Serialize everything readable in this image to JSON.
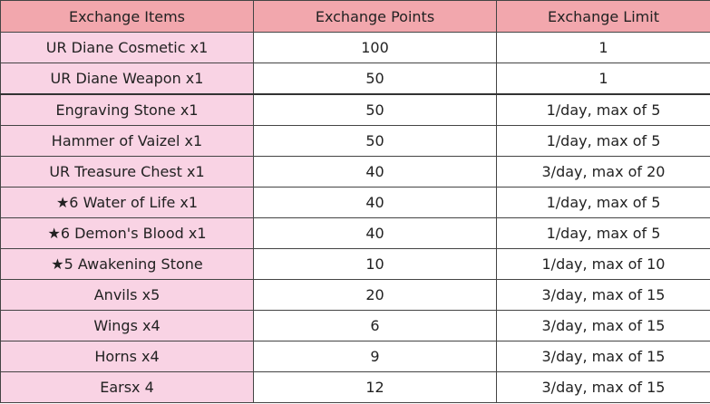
{
  "table": {
    "headers": [
      "Exchange Items",
      "Exchange Points",
      "Exchange Limit"
    ],
    "rows": [
      {
        "item": "UR Diane Cosmetic x1",
        "points": "100",
        "limit": "1"
      },
      {
        "item": "UR Diane Weapon x1",
        "points": "50",
        "limit": "1"
      },
      {
        "item": "Engraving Stone x1",
        "points": "50",
        "limit": "1/day, max of 5"
      },
      {
        "item": "Hammer of Vaizel x1",
        "points": "50",
        "limit": "1/day, max of 5"
      },
      {
        "item": "UR Treasure Chest x1",
        "points": "40",
        "limit": "3/day, max of 20"
      },
      {
        "item": "★6 Water of Life x1",
        "points": "40",
        "limit": "1/day, max of 5"
      },
      {
        "item": "★6 Demon's Blood x1",
        "points": "40",
        "limit": "1/day, max of 5"
      },
      {
        "item": "★5 Awakening Stone",
        "points": "10",
        "limit": "1/day, max of 10"
      },
      {
        "item": "Anvils x5",
        "points": "20",
        "limit": "3/day, max of 15"
      },
      {
        "item": "Wings x4",
        "points": "6",
        "limit": "3/day, max of 15"
      },
      {
        "item": "Horns x4",
        "points": "9",
        "limit": "3/day, max of 15"
      },
      {
        "item": "Earsx 4",
        "points": "12",
        "limit": "3/day, max of 15"
      }
    ]
  },
  "colors": {
    "header_bg": "#f2a7ad",
    "item_cell_bg": "#f9d3e4",
    "value_cell_bg": "#ffffff",
    "border": "#444444"
  }
}
